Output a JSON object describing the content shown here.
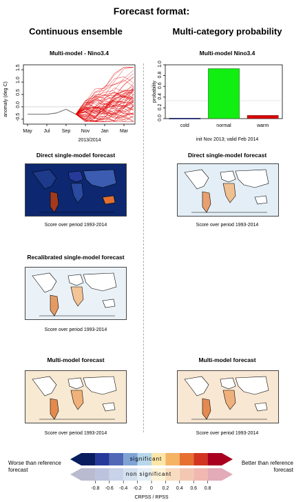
{
  "header": {
    "title": "Forecast format:"
  },
  "columns": {
    "left": "Continuous ensemble",
    "right": "Multi-category probability"
  },
  "panels": {
    "ens_title": "Multi-model - Nino3.4",
    "prob_title": "Multi-model Nino3.4",
    "direct_left": "Direct single-model forecast",
    "direct_right": "Direct single-model forecast",
    "recal_left": "Recalibrated single-model forecast",
    "mm_left": "Multi-model forecast",
    "mm_right": "Multi-model forecast"
  },
  "captions": {
    "ens_xlabel": "2013/2014",
    "prob_caption": "init Nov 2013; valid Feb 2014",
    "score": "Score over period 1993-2014"
  },
  "legend": {
    "worse": "Worse than reference forecast",
    "better": "Better than reference forecast",
    "significant": "significant",
    "non_significant": "non significant",
    "axis_title": "CRPSS / RPSS",
    "ticks": [
      "-0.8",
      "-0.6",
      "-0.4",
      "-0.2",
      "0",
      "0.2",
      "0.4",
      "0.6",
      "0.8"
    ],
    "colors_sig": [
      "#081c5e",
      "#26389a",
      "#5068b6",
      "#7ea3d4",
      "#b7d7ea",
      "#fde6a8",
      "#f5b364",
      "#e67030",
      "#d23420",
      "#a8001e"
    ],
    "colors_nonsig": [
      "#b9bcd0",
      "#bcc3de",
      "#c8d2e8",
      "#d4e0ee",
      "#e4eef5",
      "#fdf3d6",
      "#f8dcc0",
      "#f3c8b3",
      "#f0b8b0",
      "#e3aab8"
    ]
  },
  "chart_data": [
    {
      "type": "line",
      "title": "Multi-model - Nino3.4",
      "ylabel": "anomaly (deg C)",
      "xlabel": "2013/2014",
      "x_ticks": [
        "May",
        "Jul",
        "Sep",
        "Nov",
        "Jan",
        "Mar"
      ],
      "y_ticks": [
        "-0.5",
        "0.0",
        "0.5",
        "1.0",
        "1.5"
      ],
      "ylim": [
        -0.7,
        1.7
      ],
      "observed": {
        "months": [
          "May",
          "Jun",
          "Jul",
          "Aug",
          "Sep",
          "Oct"
        ],
        "values": [
          -0.3,
          -0.3,
          -0.3,
          -0.25,
          -0.1,
          -0.3
        ]
      },
      "ensemble": {
        "months": [
          "Oct",
          "Nov",
          "Dec",
          "Jan",
          "Feb",
          "Mar",
          "Apr"
        ],
        "member_count": 60,
        "color": "#e00000"
      }
    },
    {
      "type": "bar",
      "title": "Multi-model Nino3.4",
      "ylabel": "probability",
      "categories": [
        "cold",
        "normal",
        "warm"
      ],
      "values": [
        0.01,
        0.93,
        0.06
      ],
      "colors": [
        "#1d2f9f",
        "#11ee11",
        "#dd0000"
      ],
      "ylim": [
        0,
        1
      ],
      "y_ticks": [
        "0.0",
        "0.2",
        "0.4",
        "0.6",
        "0.8",
        "1.0"
      ]
    }
  ]
}
